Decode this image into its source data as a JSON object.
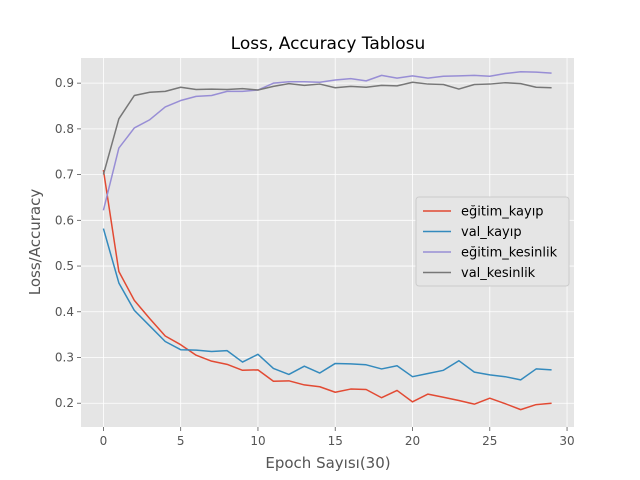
{
  "chart_data": {
    "type": "line",
    "title": "Loss, Accuracy Tablosu",
    "xlabel": "Epoch Sayısı(30)",
    "ylabel": "Loss/Accuracy",
    "xlim": [
      -1.45,
      30.45
    ],
    "ylim": [
      0.148,
      0.955
    ],
    "xticks": [
      0,
      5,
      10,
      15,
      20,
      25,
      30
    ],
    "yticks": [
      0.2,
      0.3,
      0.4,
      0.5,
      0.6,
      0.7,
      0.8,
      0.9
    ],
    "grid": true,
    "legend_position": "center-right",
    "x": [
      0,
      1,
      2,
      3,
      4,
      5,
      6,
      7,
      8,
      9,
      10,
      11,
      12,
      13,
      14,
      15,
      16,
      17,
      18,
      19,
      20,
      21,
      22,
      23,
      24,
      25,
      26,
      27,
      28,
      29
    ],
    "series": [
      {
        "name": "eğitim_kayıp",
        "color": "#E24A33",
        "values": [
          0.71,
          0.488,
          0.425,
          0.385,
          0.347,
          0.328,
          0.305,
          0.292,
          0.285,
          0.272,
          0.273,
          0.248,
          0.249,
          0.24,
          0.236,
          0.224,
          0.231,
          0.23,
          0.212,
          0.228,
          0.203,
          0.22,
          0.213,
          0.206,
          0.198,
          0.211,
          0.199,
          0.186,
          0.197,
          0.2
        ]
      },
      {
        "name": "val_kayıp",
        "color": "#348ABD",
        "values": [
          0.582,
          0.463,
          0.403,
          0.369,
          0.335,
          0.317,
          0.316,
          0.313,
          0.315,
          0.29,
          0.307,
          0.276,
          0.263,
          0.281,
          0.266,
          0.287,
          0.286,
          0.284,
          0.275,
          0.282,
          0.258,
          0.265,
          0.272,
          0.293,
          0.268,
          0.262,
          0.258,
          0.251,
          0.275,
          0.273
        ]
      },
      {
        "name": "eğitim_kesinlik",
        "color": "#988ED5",
        "values": [
          0.622,
          0.758,
          0.802,
          0.82,
          0.848,
          0.862,
          0.871,
          0.873,
          0.882,
          0.882,
          0.885,
          0.9,
          0.903,
          0.903,
          0.902,
          0.907,
          0.91,
          0.905,
          0.917,
          0.911,
          0.916,
          0.911,
          0.915,
          0.916,
          0.917,
          0.915,
          0.921,
          0.925,
          0.924,
          0.922
        ]
      },
      {
        "name": "val_kesinlik",
        "color": "#777777",
        "values": [
          0.7,
          0.822,
          0.873,
          0.88,
          0.882,
          0.891,
          0.886,
          0.887,
          0.886,
          0.888,
          0.885,
          0.893,
          0.899,
          0.895,
          0.898,
          0.89,
          0.893,
          0.891,
          0.895,
          0.894,
          0.902,
          0.898,
          0.897,
          0.887,
          0.897,
          0.898,
          0.901,
          0.899,
          0.891,
          0.89
        ]
      }
    ]
  }
}
